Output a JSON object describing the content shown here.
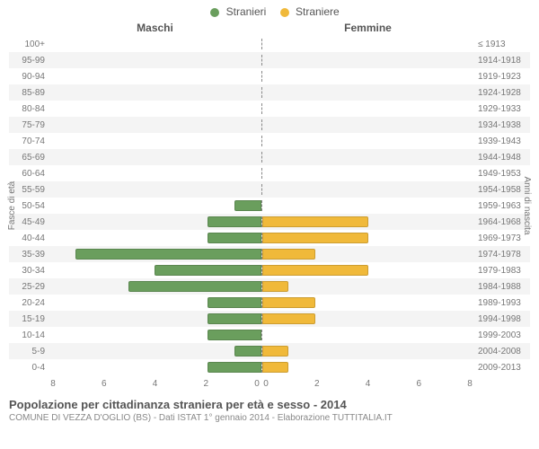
{
  "legend": {
    "male": {
      "label": "Stranieri",
      "color": "#6a9e5d"
    },
    "female": {
      "label": "Straniere",
      "color": "#f0b93a"
    }
  },
  "gender_headers": {
    "left": "Maschi",
    "right": "Femmine"
  },
  "vaxis": {
    "left": "Fasce di età",
    "right": "Anni di nascita"
  },
  "xaxis": {
    "max": 8,
    "ticks_left": [
      "8",
      "6",
      "4",
      "2",
      "0"
    ],
    "ticks_right": [
      "0",
      "2",
      "4",
      "6",
      "8"
    ]
  },
  "rows": [
    {
      "age": "100+",
      "birth": "≤ 1913",
      "m": 0,
      "f": 0
    },
    {
      "age": "95-99",
      "birth": "1914-1918",
      "m": 0,
      "f": 0
    },
    {
      "age": "90-94",
      "birth": "1919-1923",
      "m": 0,
      "f": 0
    },
    {
      "age": "85-89",
      "birth": "1924-1928",
      "m": 0,
      "f": 0
    },
    {
      "age": "80-84",
      "birth": "1929-1933",
      "m": 0,
      "f": 0
    },
    {
      "age": "75-79",
      "birth": "1934-1938",
      "m": 0,
      "f": 0
    },
    {
      "age": "70-74",
      "birth": "1939-1943",
      "m": 0,
      "f": 0
    },
    {
      "age": "65-69",
      "birth": "1944-1948",
      "m": 0,
      "f": 0
    },
    {
      "age": "60-64",
      "birth": "1949-1953",
      "m": 0,
      "f": 0
    },
    {
      "age": "55-59",
      "birth": "1954-1958",
      "m": 0,
      "f": 0
    },
    {
      "age": "50-54",
      "birth": "1959-1963",
      "m": 1,
      "f": 0
    },
    {
      "age": "45-49",
      "birth": "1964-1968",
      "m": 2,
      "f": 4
    },
    {
      "age": "40-44",
      "birth": "1969-1973",
      "m": 2,
      "f": 4
    },
    {
      "age": "35-39",
      "birth": "1974-1978",
      "m": 7,
      "f": 2
    },
    {
      "age": "30-34",
      "birth": "1979-1983",
      "m": 4,
      "f": 4
    },
    {
      "age": "25-29",
      "birth": "1984-1988",
      "m": 5,
      "f": 1
    },
    {
      "age": "20-24",
      "birth": "1989-1993",
      "m": 2,
      "f": 2
    },
    {
      "age": "15-19",
      "birth": "1994-1998",
      "m": 2,
      "f": 2
    },
    {
      "age": "10-14",
      "birth": "1999-2003",
      "m": 2,
      "f": 0
    },
    {
      "age": "5-9",
      "birth": "2004-2008",
      "m": 1,
      "f": 1
    },
    {
      "age": "0-4",
      "birth": "2009-2013",
      "m": 2,
      "f": 1
    }
  ],
  "caption": {
    "title": "Popolazione per cittadinanza straniera per età e sesso - 2014",
    "subtitle": "COMUNE DI VEZZA D'OGLIO (BS) - Dati ISTAT 1° gennaio 2014 - Elaborazione TUTTITALIA.IT"
  },
  "style": {
    "row_bg_odd": "#f4f4f4",
    "row_bg_even": "#ffffff"
  }
}
